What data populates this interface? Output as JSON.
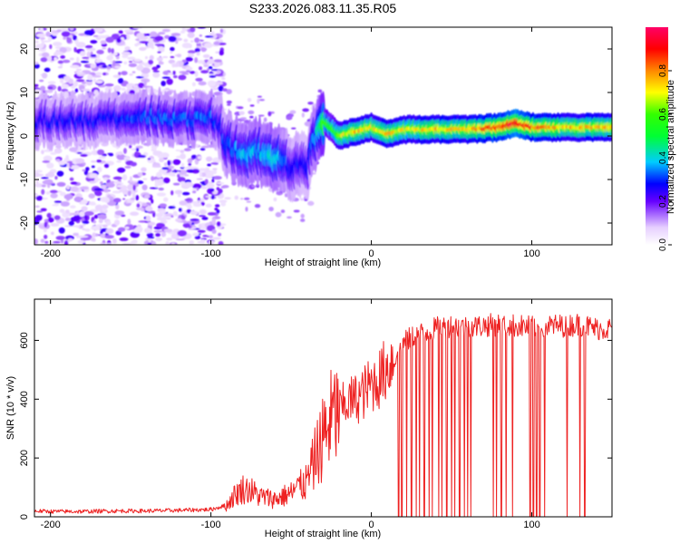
{
  "title": "S233.2026.083.11.35.R05",
  "chart_data": [
    {
      "type": "heatmap",
      "xlabel": "Height of straight line (km)",
      "ylabel": "Frequency (Hz)",
      "xlim": [
        -210,
        150
      ],
      "ylim": [
        -25,
        25
      ],
      "xticks": [
        -200,
        -100,
        0,
        100
      ],
      "yticks": [
        -20,
        -10,
        0,
        10,
        20
      ],
      "colorbar": {
        "label": "Normalized spectral amplitude",
        "range": [
          0,
          1
        ],
        "ticks": [
          "0.0",
          "0.2",
          "0.4",
          "0.6",
          "0.8"
        ]
      },
      "dominant_frequency_track": {
        "x": [
          -205,
          -180,
          -160,
          -140,
          -120,
          -100,
          -95,
          -90,
          -80,
          -70,
          -60,
          -50,
          -40,
          -35,
          -30,
          -25,
          -20,
          -10,
          0,
          10,
          20,
          40,
          60,
          80,
          90,
          100,
          120,
          140,
          150
        ],
        "y": [
          3.5,
          3.5,
          4,
          4.5,
          4,
          4,
          3,
          -2,
          -4,
          -3.5,
          -5,
          -7,
          -7,
          0,
          3.5,
          2,
          0,
          1,
          2,
          0.5,
          1.5,
          1.5,
          1.5,
          2,
          3,
          2,
          2,
          2,
          2
        ],
        "peak_amplitude": [
          0.3,
          0.3,
          0.3,
          0.35,
          0.35,
          0.35,
          0.3,
          0.35,
          0.4,
          0.4,
          0.45,
          0.3,
          0.3,
          0.4,
          0.6,
          0.6,
          0.7,
          0.8,
          0.75,
          0.8,
          0.75,
          0.8,
          0.8,
          0.95,
          1.0,
          0.9,
          0.8,
          0.8,
          0.8
        ]
      }
    },
    {
      "type": "line",
      "xlabel": "Height of straight line (km)",
      "ylabel": "SNR (10 * v/v)",
      "xlim": [
        -210,
        150
      ],
      "ylim": [
        0,
        740
      ],
      "xticks": [
        -200,
        -100,
        0,
        100
      ],
      "yticks": [
        0,
        200,
        400,
        600
      ],
      "series": [
        {
          "name": "SNR",
          "color": "#ee2222",
          "x": [
            -210,
            -200,
            -180,
            -160,
            -140,
            -120,
            -100,
            -90,
            -85,
            -80,
            -75,
            -70,
            -60,
            -50,
            -40,
            -35,
            -30,
            -25,
            -20,
            -15,
            -10,
            -5,
            0,
            5,
            10,
            15,
            20,
            25,
            30,
            40,
            50,
            60,
            70,
            80,
            90,
            100,
            110,
            120,
            130,
            140,
            150
          ],
          "y": [
            20,
            18,
            18,
            20,
            20,
            22,
            25,
            40,
            75,
            95,
            90,
            70,
            60,
            80,
            120,
            200,
            270,
            330,
            360,
            390,
            400,
            420,
            450,
            470,
            510,
            550,
            590,
            610,
            620,
            640,
            650,
            645,
            650,
            655,
            650,
            645,
            650,
            650,
            655,
            640,
            640
          ]
        }
      ],
      "dropouts_x": [
        17,
        19,
        22,
        25,
        28,
        30,
        33,
        36,
        38,
        42,
        44,
        47,
        50,
        52,
        55,
        58,
        60,
        62,
        76,
        78,
        81,
        84,
        88,
        99,
        101,
        103,
        105,
        108,
        122,
        130,
        133
      ]
    }
  ]
}
